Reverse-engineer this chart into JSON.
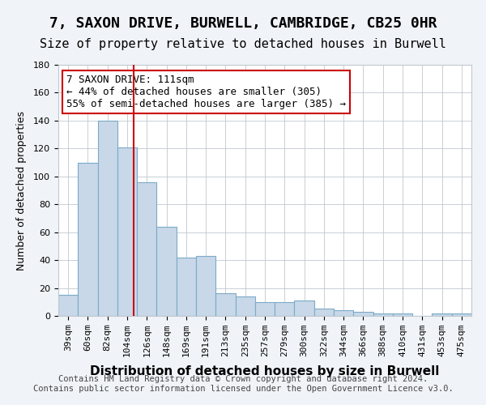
{
  "title": "7, SAXON DRIVE, BURWELL, CAMBRIDGE, CB25 0HR",
  "subtitle": "Size of property relative to detached houses in Burwell",
  "xlabel": "Distribution of detached houses by size in Burwell",
  "ylabel": "Number of detached properties",
  "categories": [
    "39sqm",
    "60sqm",
    "82sqm",
    "104sqm",
    "126sqm",
    "148sqm",
    "169sqm",
    "191sqm",
    "213sqm",
    "235sqm",
    "257sqm",
    "279sqm",
    "300sqm",
    "322sqm",
    "344sqm",
    "366sqm",
    "388sqm",
    "410sqm",
    "431sqm",
    "453sqm",
    "475sqm"
  ],
  "values": [
    15,
    110,
    140,
    121,
    96,
    64,
    42,
    43,
    16,
    14,
    10,
    10,
    11,
    5,
    4,
    3,
    2,
    2,
    0,
    2,
    2
  ],
  "bar_color": "#c8d8e8",
  "bar_edge_color": "#7aaac8",
  "red_line_x": 111,
  "red_line_color": "#cc0000",
  "annotation_text": "7 SAXON DRIVE: 111sqm\n← 44% of detached houses are smaller (305)\n55% of semi-detached houses are larger (385) →",
  "annotation_box_color": "white",
  "annotation_box_edge_color": "#cc0000",
  "ylim": [
    0,
    180
  ],
  "yticks": [
    0,
    20,
    40,
    60,
    80,
    100,
    120,
    140,
    160,
    180
  ],
  "footer_text": "Contains HM Land Registry data © Crown copyright and database right 2024.\nContains public sector information licensed under the Open Government Licence v3.0.",
  "background_color": "#f0f4f8",
  "plot_background_color": "white",
  "title_fontsize": 13,
  "subtitle_fontsize": 11,
  "xlabel_fontsize": 11,
  "ylabel_fontsize": 9,
  "tick_fontsize": 8,
  "annotation_fontsize": 9,
  "footer_fontsize": 7.5
}
